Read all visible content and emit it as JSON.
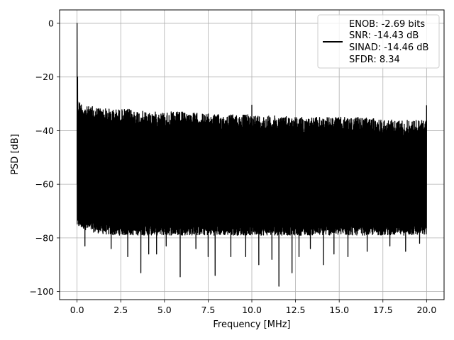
{
  "chart_data": {
    "type": "line",
    "xlabel": "Frequency [MHz]",
    "ylabel": "PSD [dB]",
    "xlim": [
      -1.0,
      21.0
    ],
    "ylim": [
      -103.0,
      5.0
    ],
    "xticks": [
      0.0,
      2.5,
      5.0,
      7.5,
      10.0,
      12.5,
      15.0,
      17.5,
      20.0
    ],
    "xtick_labels": [
      "0.0",
      "2.5",
      "5.0",
      "7.5",
      "10.0",
      "12.5",
      "15.0",
      "17.5",
      "20.0"
    ],
    "yticks": [
      0,
      -20,
      -40,
      -60,
      -80,
      -100
    ],
    "ytick_labels": [
      "0",
      "−20",
      "−40",
      "−60",
      "−80",
      "−100"
    ],
    "grid": true,
    "legend_position": "top-right",
    "line_color": "#000000",
    "series": [
      {
        "name": "ENOB: -2.69 bits\nSNR: -14.43 dB\nSINAD: -14.46 dB\nSFDR: 8.34",
        "legend_lines": [
          "ENOB: -2.69 bits",
          "SNR: -14.43 dB",
          "SINAD: -14.46 dB",
          "SFDR: 8.34"
        ],
        "envelope": {
          "x": [
            0.0,
            0.5,
            1.0,
            2.0,
            3.0,
            4.0,
            5.0,
            6.0,
            7.0,
            8.0,
            9.0,
            10.0,
            11.0,
            12.0,
            13.0,
            14.0,
            15.0,
            16.0,
            17.0,
            18.0,
            19.0,
            20.0
          ],
          "upper": [
            -28,
            -31,
            -31,
            -32,
            -32,
            -33,
            -33,
            -33,
            -33.5,
            -34,
            -34,
            -34,
            -34.5,
            -34.5,
            -35,
            -35,
            -35,
            -35,
            -35.5,
            -36,
            -36,
            -36
          ],
          "lower": [
            -76,
            -77,
            -78,
            -79,
            -79,
            -79,
            -79,
            -79,
            -79,
            -79,
            -79,
            -79,
            -79,
            -79,
            -79,
            -79,
            -79,
            -79,
            -79,
            -79,
            -79,
            -79
          ]
        },
        "peaks": [
          {
            "x": 0.0,
            "y": 0
          },
          {
            "x": 0.03,
            "y": -20
          },
          {
            "x": 10.0,
            "y": -30.5
          },
          {
            "x": 20.0,
            "y": -30.5
          }
        ],
        "dips": [
          {
            "x": 0.45,
            "y": -83
          },
          {
            "x": 1.95,
            "y": -84
          },
          {
            "x": 2.9,
            "y": -87
          },
          {
            "x": 3.65,
            "y": -93
          },
          {
            "x": 4.1,
            "y": -86
          },
          {
            "x": 4.55,
            "y": -86
          },
          {
            "x": 5.1,
            "y": -83
          },
          {
            "x": 5.9,
            "y": -94.5
          },
          {
            "x": 6.8,
            "y": -84
          },
          {
            "x": 7.5,
            "y": -87
          },
          {
            "x": 7.9,
            "y": -94
          },
          {
            "x": 8.8,
            "y": -87
          },
          {
            "x": 9.65,
            "y": -87
          },
          {
            "x": 10.4,
            "y": -90
          },
          {
            "x": 11.15,
            "y": -88
          },
          {
            "x": 11.55,
            "y": -98
          },
          {
            "x": 12.3,
            "y": -93
          },
          {
            "x": 12.7,
            "y": -87
          },
          {
            "x": 13.35,
            "y": -84
          },
          {
            "x": 14.1,
            "y": -90
          },
          {
            "x": 14.7,
            "y": -86
          },
          {
            "x": 15.5,
            "y": -87
          },
          {
            "x": 16.6,
            "y": -85
          },
          {
            "x": 17.9,
            "y": -83
          },
          {
            "x": 18.8,
            "y": -85
          },
          {
            "x": 19.6,
            "y": -82
          }
        ]
      }
    ]
  }
}
